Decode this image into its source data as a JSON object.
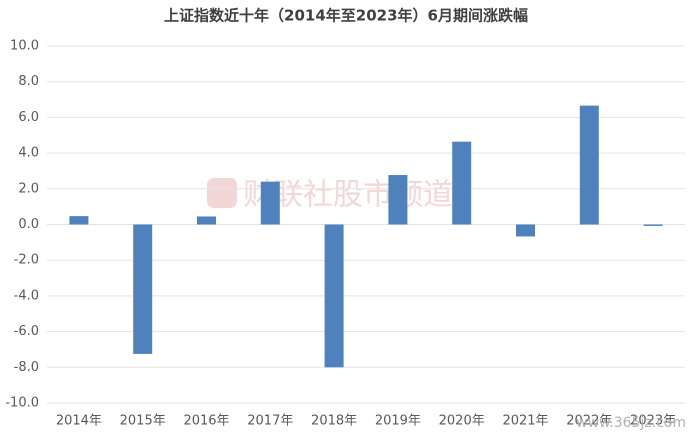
{
  "chart_data": {
    "type": "bar",
    "title": "上证指数近十年（2014年至2023年）6月期间涨跌幅",
    "categories": [
      "2014年",
      "2015年",
      "2016年",
      "2017年",
      "2018年",
      "2019年",
      "2020年",
      "2021年",
      "2022年",
      "2023年"
    ],
    "values": [
      0.47,
      -7.25,
      0.45,
      2.4,
      -8.0,
      2.77,
      4.64,
      -0.67,
      6.66,
      -0.08
    ],
    "color": "#4f81bd",
    "ylim": [
      -10,
      10
    ],
    "yticks": [
      {
        "value": -10,
        "label": "-10.0"
      },
      {
        "value": -8,
        "label": "-8.0"
      },
      {
        "value": -6,
        "label": "-6.0"
      },
      {
        "value": -4,
        "label": "-4.0"
      },
      {
        "value": -2,
        "label": "-2.0"
      },
      {
        "value": 0,
        "label": "0.0"
      },
      {
        "value": 2,
        "label": "2.0"
      },
      {
        "value": 4,
        "label": "4.0"
      },
      {
        "value": 6,
        "label": "6.0"
      },
      {
        "value": 8,
        "label": "8.0"
      },
      {
        "value": 10,
        "label": "10.0"
      }
    ],
    "grid": true,
    "watermark": "财联社股市频道",
    "source_watermark": "www.365jz.com"
  }
}
